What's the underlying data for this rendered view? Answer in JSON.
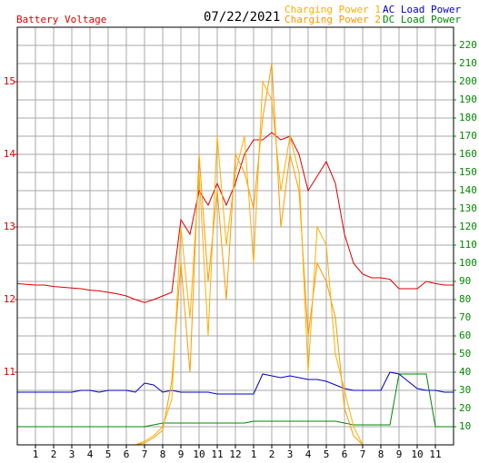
{
  "chart_data": {
    "type": "line",
    "title": "07/22/2021",
    "x": [
      0,
      0.5,
      1,
      1.5,
      2,
      2.5,
      3,
      3.5,
      4,
      4.5,
      5,
      5.5,
      6,
      6.5,
      7,
      7.5,
      8,
      8.5,
      9,
      9.5,
      10,
      10.5,
      11,
      11.5,
      12,
      12.5,
      13,
      13.5,
      14,
      14.5,
      15,
      15.5,
      16,
      16.5,
      17,
      17.5,
      18,
      18.5,
      19,
      19.5,
      20,
      20.5,
      21,
      21.5,
      22,
      22.5,
      23,
      23.5,
      24
    ],
    "xlim": [
      0,
      24
    ],
    "xticks": [
      1,
      2,
      3,
      4,
      5,
      6,
      7,
      8,
      9,
      10,
      11,
      12,
      {
        "value": 13,
        "label": "1"
      },
      {
        "value": 14,
        "label": "2"
      },
      {
        "value": 15,
        "label": "3"
      },
      {
        "value": 16,
        "label": "4"
      },
      {
        "value": 17,
        "label": "5"
      },
      {
        "value": 18,
        "label": "6"
      },
      {
        "value": 19,
        "label": "7"
      },
      {
        "value": 20,
        "label": "8"
      },
      {
        "value": 21,
        "label": "9"
      },
      {
        "value": 22,
        "label": "10"
      },
      {
        "value": 23,
        "label": "11"
      }
    ],
    "ylim": [
      10,
      15.75
    ],
    "yticks": [
      11,
      12,
      13,
      14,
      15
    ],
    "y2lim": [
      0,
      230
    ],
    "y2ticks": [
      10,
      20,
      30,
      40,
      50,
      60,
      70,
      80,
      90,
      100,
      110,
      120,
      130,
      140,
      150,
      160,
      170,
      180,
      190,
      200,
      210,
      220
    ],
    "grid": true,
    "series": [
      {
        "name": "Battery Voltage",
        "color": "#dd0000",
        "axis": "y",
        "values": [
          12.22,
          12.21,
          12.2,
          12.2,
          12.18,
          12.17,
          12.16,
          12.15,
          12.13,
          12.12,
          12.1,
          12.08,
          12.05,
          12.0,
          11.96,
          12.0,
          12.05,
          12.1,
          13.1,
          12.9,
          13.5,
          13.3,
          13.6,
          13.3,
          13.6,
          14.0,
          14.2,
          14.2,
          14.3,
          14.2,
          14.25,
          14.0,
          13.5,
          13.7,
          13.9,
          13.6,
          12.9,
          12.5,
          12.35,
          12.3,
          12.3,
          12.28,
          12.15,
          12.15,
          12.15,
          12.25,
          12.22,
          12.2,
          12.2
        ]
      },
      {
        "name": "Charging Power 1",
        "color": "#ffb000",
        "axis": "y2",
        "values": [
          0,
          0,
          0,
          0,
          0,
          0,
          0,
          0,
          0,
          0,
          0,
          0,
          0,
          0,
          2,
          5,
          10,
          25,
          120,
          70,
          150,
          60,
          170,
          110,
          150,
          170,
          100,
          200,
          190,
          140,
          170,
          150,
          40,
          120,
          110,
          50,
          30,
          10,
          0,
          0,
          0,
          0,
          0,
          0,
          0,
          0,
          0,
          0,
          0
        ]
      },
      {
        "name": "Charging Power 2",
        "color": "#ff9900",
        "axis": "y2",
        "values": [
          0,
          0,
          0,
          0,
          0,
          0,
          0,
          0,
          0,
          0,
          0,
          0,
          0,
          0,
          1,
          4,
          8,
          35,
          100,
          40,
          160,
          90,
          140,
          80,
          160,
          150,
          130,
          180,
          210,
          120,
          160,
          140,
          60,
          100,
          90,
          70,
          20,
          5,
          0,
          0,
          0,
          0,
          0,
          0,
          0,
          0,
          0,
          0,
          0
        ]
      },
      {
        "name": "AC Load Power",
        "color": "#0000cc",
        "axis": "y2",
        "values": [
          29,
          29,
          29,
          29,
          29,
          29,
          29,
          30,
          30,
          29,
          30,
          30,
          30,
          29,
          34,
          33,
          29,
          30,
          29,
          29,
          29,
          29,
          28,
          28,
          28,
          28,
          28,
          39,
          38,
          37,
          38,
          37,
          36,
          36,
          35,
          33,
          31,
          30,
          30,
          30,
          30,
          40,
          39,
          35,
          31,
          30,
          30,
          29,
          29
        ]
      },
      {
        "name": "DC Load Power",
        "color": "#008800",
        "axis": "y2",
        "values": [
          10,
          10,
          10,
          10,
          10,
          10,
          10,
          10,
          10,
          10,
          10,
          10,
          10,
          10,
          10,
          11,
          12,
          12,
          12,
          12,
          12,
          12,
          12,
          12,
          12,
          12,
          13,
          13,
          13,
          13,
          13,
          13,
          13,
          13,
          13,
          13,
          12,
          11,
          11,
          11,
          11,
          11,
          39,
          39,
          39,
          39,
          10,
          10,
          10
        ]
      }
    ]
  }
}
